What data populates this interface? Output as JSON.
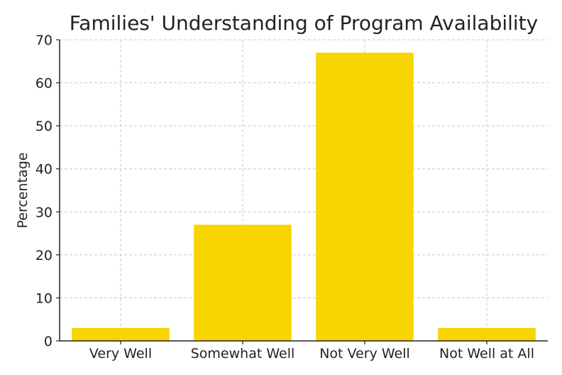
{
  "chart_data": {
    "type": "bar",
    "title": "Families' Understanding of Program Availability",
    "xlabel": "",
    "ylabel": "Percentage",
    "categories": [
      "Very Well",
      "Somewhat Well",
      "Not Very Well",
      "Not Well at All"
    ],
    "values": [
      3,
      27,
      67,
      3
    ],
    "ylim": [
      0,
      70
    ],
    "yticks": [
      0,
      10,
      20,
      30,
      40,
      50,
      60,
      70
    ],
    "grid": true,
    "bar_color": "#f8d400",
    "grid_color": "#c8c8c8"
  }
}
